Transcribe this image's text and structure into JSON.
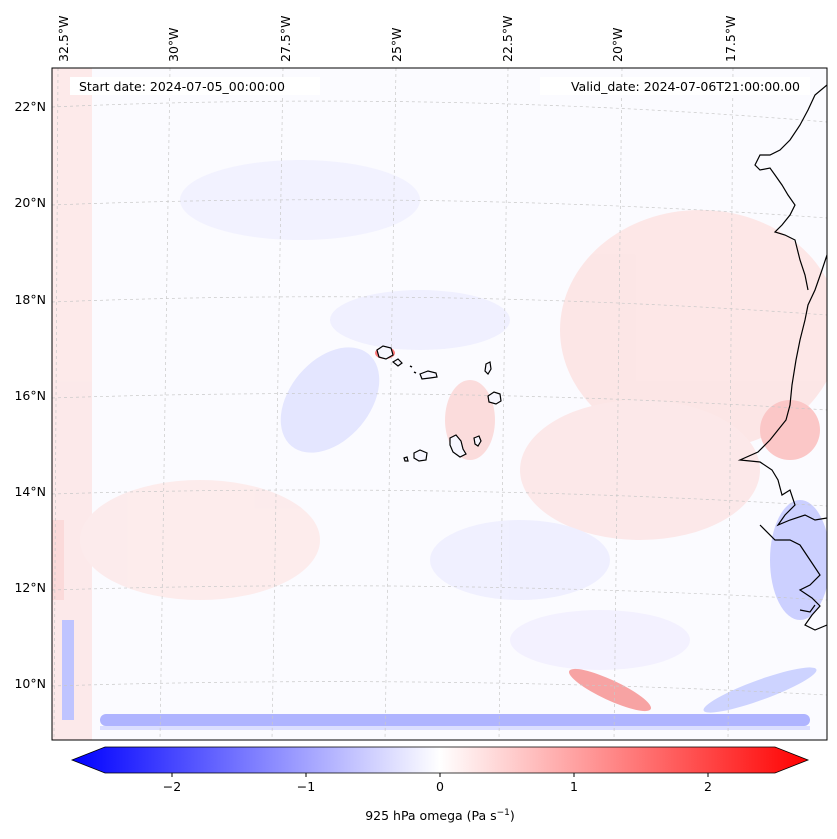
{
  "map": {
    "start_date": "Start date: 2024-07-05_00:00:00",
    "valid_date": "Valid_date: 2024-07-06T21:00:00.00",
    "lon_ticks": [
      "32.5°W",
      "30°W",
      "27.5°W",
      "25°W",
      "22.5°W",
      "20°W",
      "17.5°W"
    ],
    "lat_ticks": [
      "22°N",
      "20°N",
      "18°N",
      "16°N",
      "14°N",
      "12°N",
      "10°N"
    ],
    "field": "925 hPa omega",
    "colormap": "bwr"
  },
  "colorbar": {
    "min": -2.6,
    "max": 2.6,
    "ticks": [
      "−2",
      "−1",
      "0",
      "1",
      "2"
    ],
    "tick_values": [
      -2,
      -1,
      0,
      1,
      2
    ],
    "label": "925 hPa omega (Pa s",
    "label_sup": "−1",
    "label_end": ")",
    "colors": {
      "low": "#0000ff",
      "mid": "#ffffff",
      "high": "#ff0000"
    }
  }
}
